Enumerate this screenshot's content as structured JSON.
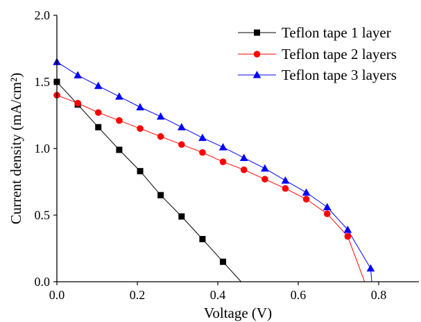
{
  "chart_data": {
    "type": "line",
    "title": "",
    "xlabel": "Voltage (V)",
    "ylabel": "Current density (mA/cm²)",
    "xlim": [
      0,
      0.9
    ],
    "ylim": [
      0,
      2.0
    ],
    "x_ticks": [
      "0.0",
      "0.2",
      "0.4",
      "0.6",
      "0.8"
    ],
    "y_ticks": [
      "0.0",
      "0.5",
      "1.0",
      "1.5",
      "2.0"
    ],
    "grid": false,
    "legend_position": "top-right",
    "series": [
      {
        "name": "Teflon tape 1 layer",
        "color": "#000000",
        "marker": "square",
        "points": [
          [
            0.0,
            1.5
          ],
          [
            0.052,
            1.33
          ],
          [
            0.103,
            1.16
          ],
          [
            0.155,
            0.99
          ],
          [
            0.207,
            0.83
          ],
          [
            0.258,
            0.65
          ],
          [
            0.31,
            0.49
          ],
          [
            0.362,
            0.32
          ],
          [
            0.413,
            0.15
          ]
        ],
        "line_end": [
          0.458,
          0.0
        ]
      },
      {
        "name": "Teflon tape 2 layers",
        "color": "#ff0000",
        "marker": "circle",
        "points": [
          [
            0.0,
            1.4
          ],
          [
            0.052,
            1.34
          ],
          [
            0.103,
            1.27
          ],
          [
            0.155,
            1.21
          ],
          [
            0.207,
            1.15
          ],
          [
            0.258,
            1.09
          ],
          [
            0.31,
            1.03
          ],
          [
            0.362,
            0.97
          ],
          [
            0.413,
            0.9
          ],
          [
            0.465,
            0.84
          ],
          [
            0.517,
            0.77
          ],
          [
            0.568,
            0.7
          ],
          [
            0.62,
            0.62
          ],
          [
            0.672,
            0.51
          ],
          [
            0.723,
            0.34
          ]
        ],
        "line_end": [
          0.765,
          0.0
        ]
      },
      {
        "name": "Teflon tape 3 layers",
        "color": "#0000ff",
        "marker": "triangle",
        "points": [
          [
            0.0,
            1.65
          ],
          [
            0.052,
            1.55
          ],
          [
            0.103,
            1.47
          ],
          [
            0.155,
            1.39
          ],
          [
            0.207,
            1.31
          ],
          [
            0.258,
            1.24
          ],
          [
            0.31,
            1.16
          ],
          [
            0.362,
            1.08
          ],
          [
            0.413,
            1.01
          ],
          [
            0.465,
            0.93
          ],
          [
            0.517,
            0.85
          ],
          [
            0.568,
            0.76
          ],
          [
            0.62,
            0.67
          ],
          [
            0.672,
            0.56
          ],
          [
            0.723,
            0.39
          ],
          [
            0.78,
            0.1
          ]
        ],
        "line_end": [
          0.783,
          0.0
        ]
      }
    ]
  }
}
